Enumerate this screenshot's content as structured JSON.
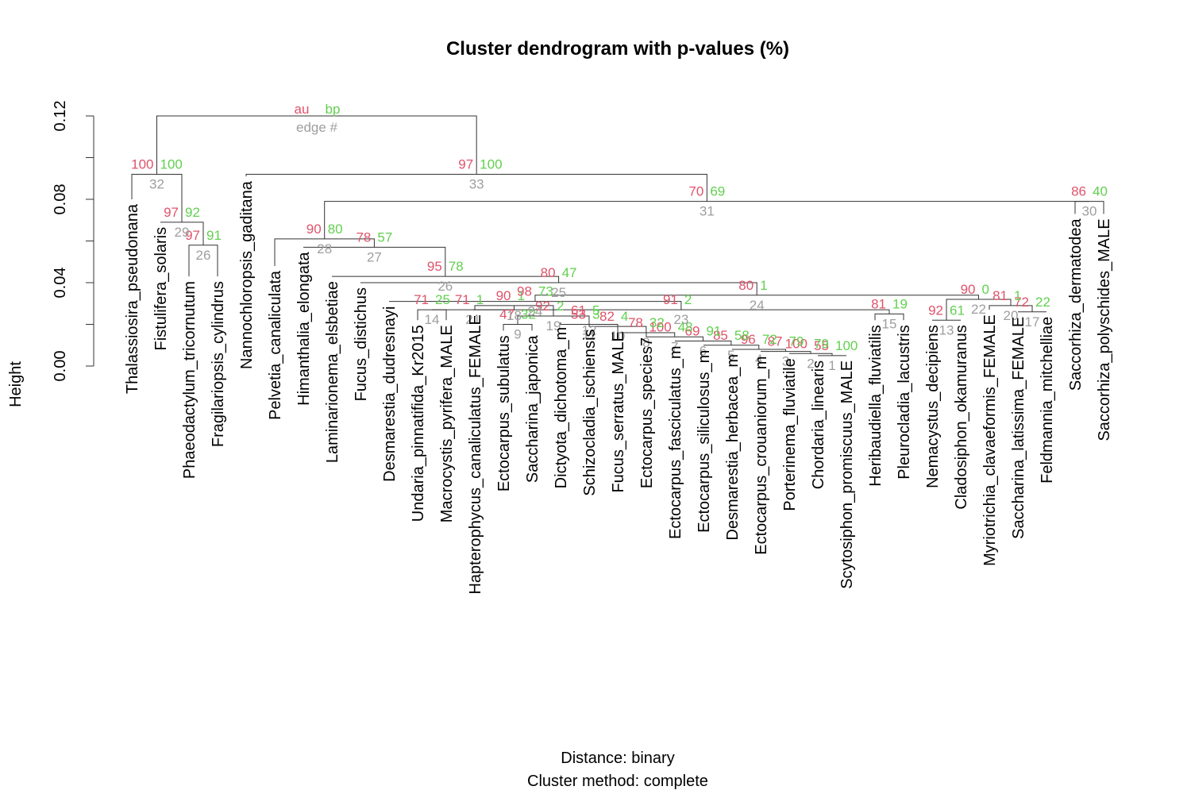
{
  "chart_data": {
    "type": "dendrogram",
    "title": "Cluster dendrogram with p-values (%)",
    "ylabel": "Height",
    "xlabel_line1": "Distance:  binary",
    "xlabel_line2": "Cluster method: complete",
    "ylim": [
      0,
      0.12
    ],
    "yticks": [
      {
        "value": 0.0,
        "label": "0.00"
      },
      {
        "value": 0.04,
        "label": "0.04"
      },
      {
        "value": 0.08,
        "label": "0.08"
      },
      {
        "value": 0.12,
        "label": "0.12"
      }
    ],
    "legend": {
      "au": "au",
      "bp": "bp",
      "edge": "edge #"
    },
    "colors": {
      "au": "#DF536B",
      "bp": "#61D04F",
      "edge": "#9E9E9E",
      "line": "#333333",
      "text": "#000000"
    },
    "leaves": [
      {
        "name": "Thalassiosira_pseudonana",
        "height": 0.08
      },
      {
        "name": "Fistulifera_solaris",
        "height": 0.069
      },
      {
        "name": "Phaeodactylum_tricornutum",
        "height": 0.043
      },
      {
        "name": "Fragilariopsis_cylindrus",
        "height": 0.043
      },
      {
        "name": "Nannochloropsis_gaditana",
        "height": 0.091
      },
      {
        "name": "Pelvetia_canaliculata",
        "height": 0.048
      },
      {
        "name": "Himanthalia_elongata",
        "height": 0.057
      },
      {
        "name": "Laminarionema_elsbetiae",
        "height": 0.043
      },
      {
        "name": "Fucus_distichus",
        "height": 0.04
      },
      {
        "name": "Desmarestia_dudresnayi",
        "height": 0.031
      },
      {
        "name": "Undaria_pinnatifida_Kr2015",
        "height": 0.022
      },
      {
        "name": "Macrocystis_pyrifera_MALE",
        "height": 0.022
      },
      {
        "name": "Hapterophycus_canaliculatus_FEMALE",
        "height": 0.027
      },
      {
        "name": "Ectocarpus_subulatus",
        "height": 0.017
      },
      {
        "name": "Saccharina_japonica",
        "height": 0.017
      },
      {
        "name": "Dictyota_dichotoma_m",
        "height": 0.021
      },
      {
        "name": "Schizocladia_ischiensis",
        "height": 0.02
      },
      {
        "name": "Fucus_serratus_MALE",
        "height": 0.019
      },
      {
        "name": "Ectocarpus_species7",
        "height": 0.016
      },
      {
        "name": "Ectocarpus_fasciculatus_m",
        "height": 0.012
      },
      {
        "name": "Ectocarpus_siliculosus_m",
        "height": 0.01
      },
      {
        "name": "Desmarestia_herbacea_m",
        "height": 0.008
      },
      {
        "name": "Ectocarpus_crouaniorum_m",
        "height": 0.007
      },
      {
        "name": "Porterinema_fluviatile",
        "height": 0.006
      },
      {
        "name": "Chordaria_linearis",
        "height": 0.005
      },
      {
        "name": "Scytosiphon_promiscuus_MALE",
        "height": 0.005
      },
      {
        "name": "Heribaudiella_fluviatilis",
        "height": 0.022
      },
      {
        "name": "Pleurocladia_lacustris",
        "height": 0.022
      },
      {
        "name": "Nemacystus_decipiens",
        "height": 0.022
      },
      {
        "name": "Cladosiphon_okamuranus",
        "height": 0.022
      },
      {
        "name": "Myriotrichia_clavaeformis_FEMALE",
        "height": 0.027
      },
      {
        "name": "Saccharina_latissima_FEMALE",
        "height": 0.026
      },
      {
        "name": "Feldmannia_mitchelliae",
        "height": 0.026
      },
      {
        "name": "Saccorhiza_dermatodea",
        "height": 0.073
      },
      {
        "name": "Saccorhiza_polyschides_MALE",
        "height": 0.073
      }
    ],
    "merges": [
      {
        "edge": "1",
        "au": "55",
        "bp": "100",
        "height": 0.005,
        "a": {
          "leaf": 24
        },
        "b": {
          "leaf": 25
        }
      },
      {
        "edge": "2",
        "au": "100",
        "bp": "79",
        "height": 0.006,
        "a": {
          "leaf": 23
        },
        "b": {
          "node": 0
        }
      },
      {
        "edge": "3",
        "au": "87",
        "bp": "79",
        "height": 0.007,
        "a": {
          "leaf": 22
        },
        "b": {
          "node": 1
        }
      },
      {
        "edge": "4",
        "au": "96",
        "bp": "72",
        "height": 0.008,
        "a": {
          "leaf": 21
        },
        "b": {
          "node": 2
        }
      },
      {
        "edge": "5",
        "au": "85",
        "bp": "58",
        "height": 0.01,
        "a": {
          "leaf": 20
        },
        "b": {
          "node": 3
        }
      },
      {
        "edge": "6",
        "au": "69",
        "bp": "91",
        "height": 0.012,
        "a": {
          "leaf": 19
        },
        "b": {
          "node": 4
        }
      },
      {
        "edge": "7",
        "au": "100",
        "bp": "48",
        "height": 0.014,
        "a": {
          "leaf": 18
        },
        "b": {
          "node": 5
        }
      },
      {
        "edge": "8",
        "au": "78",
        "bp": "32",
        "height": 0.016,
        "a": {
          "leaf": 17
        },
        "b": {
          "node": 6
        }
      },
      {
        "edge": "10",
        "au": "82",
        "bp": "4",
        "height": 0.019,
        "a": {
          "leaf": 16
        },
        "b": {
          "node": 7
        }
      },
      {
        "edge": "11",
        "au": "53",
        "bp": "3",
        "height": 0.02,
        "a": {
          "leaf": 15
        },
        "b": {
          "node": 8
        }
      },
      {
        "edge": "12",
        "au": "61",
        "bp": "5",
        "height": 0.022,
        "a": {
          "node": 9
        },
        "b": {
          "node": 9
        }
      },
      {
        "edge": "9",
        "au": "47",
        "bp": "32",
        "height": 0.02,
        "a": {
          "leaf": 13
        },
        "b": {
          "leaf": 14
        }
      },
      {
        "edge": "19",
        "au": "92",
        "bp": "2",
        "height": 0.024,
        "a": {
          "node": 11
        },
        "b": {
          "node": 10
        }
      },
      {
        "edge": "14",
        "au": "71",
        "bp": "25",
        "height": 0.027,
        "a": {
          "leaf": 10
        },
        "b": {
          "leaf": 11
        }
      },
      {
        "edge": "18",
        "au": "90",
        "bp": "1",
        "height": 0.029,
        "a": {
          "leaf": 12
        },
        "b": {
          "node": 12
        }
      },
      {
        "edge": "21",
        "au": "71",
        "bp": "1",
        "height": 0.027,
        "a": {
          "node": 13
        },
        "b": {
          "node": 14
        }
      },
      {
        "edge": "15",
        "au": "81",
        "bp": "19",
        "height": 0.025,
        "a": {
          "leaf": 26
        },
        "b": {
          "leaf": 27
        }
      },
      {
        "edge": "13",
        "au": "92",
        "bp": "61",
        "height": 0.022,
        "a": {
          "leaf": 28
        },
        "b": {
          "leaf": 29
        }
      },
      {
        "edge": "17",
        "au": "72",
        "bp": "22",
        "height": 0.026,
        "a": {
          "leaf": 31
        },
        "b": {
          "leaf": 32
        }
      },
      {
        "edge": "20",
        "au": "81",
        "bp": "1",
        "height": 0.029,
        "a": {
          "leaf": 30
        },
        "b": {
          "node": 18
        }
      },
      {
        "edge": "22",
        "au": "90",
        "bp": "0",
        "height": 0.032,
        "a": {
          "node": 17
        },
        "b": {
          "node": 19
        }
      },
      {
        "edge": "23",
        "au": "91",
        "bp": "2",
        "height": 0.027,
        "a": {
          "node": 15
        },
        "b": {
          "node": 16
        }
      },
      {
        "edge": "24",
        "au": "98",
        "bp": "73",
        "height": 0.031,
        "a": {
          "leaf": 9
        },
        "b": {
          "node": 21
        }
      },
      {
        "edge": "24",
        "au": "80",
        "bp": "1",
        "height": 0.034,
        "a": {
          "node": 22
        },
        "b": {
          "node": 20
        }
      },
      {
        "edge": "25",
        "au": "80",
        "bp": "47",
        "height": 0.04,
        "a": {
          "leaf": 8
        },
        "b": {
          "node": 23
        }
      },
      {
        "edge": "26",
        "au": "95",
        "bp": "78",
        "height": 0.043,
        "a": {
          "leaf": 7
        },
        "b": {
          "node": 24
        }
      },
      {
        "edge": "27",
        "au": "78",
        "bp": "57",
        "height": 0.057,
        "a": {
          "leaf": 6
        },
        "b": {
          "node": 25
        }
      },
      {
        "edge": "28",
        "au": "90",
        "bp": "80",
        "height": 0.061,
        "a": {
          "leaf": 5
        },
        "b": {
          "node": 26
        }
      },
      {
        "edge": "30",
        "au": "86",
        "bp": "40",
        "height": 0.079,
        "a": {
          "leaf": 33
        },
        "b": {
          "leaf": 34
        }
      },
      {
        "edge": "31",
        "au": "70",
        "bp": "69",
        "height": 0.079,
        "a": {
          "node": 27
        },
        "b": {
          "node": 28
        }
      },
      {
        "edge": "26",
        "au": "97",
        "bp": "91",
        "height": 0.058,
        "a": {
          "leaf": 2
        },
        "b": {
          "leaf": 3
        }
      },
      {
        "edge": "29",
        "au": "97",
        "bp": "92",
        "height": 0.069,
        "a": {
          "leaf": 1
        },
        "b": {
          "node": 30
        }
      },
      {
        "edge": "32",
        "au": "100",
        "bp": "100",
        "height": 0.092,
        "a": {
          "leaf": 0
        },
        "b": {
          "node": 31
        }
      },
      {
        "edge": "33",
        "au": "97",
        "bp": "100",
        "height": 0.092,
        "a": {
          "leaf": 4
        },
        "b": {
          "node": 29
        }
      },
      {
        "edge": "",
        "au": "",
        "bp": "",
        "height": 0.12,
        "a": {
          "node": 32
        },
        "b": {
          "node": 33
        }
      }
    ]
  }
}
